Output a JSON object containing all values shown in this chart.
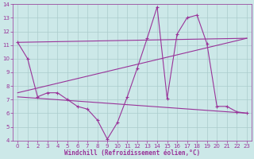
{
  "xlabel": "Windchill (Refroidissement éolien,°C)",
  "bg_color": "#cce8e8",
  "line_color": "#993399",
  "grid_color": "#aacccc",
  "xlim": [
    -0.5,
    23.5
  ],
  "ylim": [
    4,
    14
  ],
  "yticks": [
    4,
    5,
    6,
    7,
    8,
    9,
    10,
    11,
    12,
    13,
    14
  ],
  "xticks": [
    0,
    1,
    2,
    3,
    4,
    5,
    6,
    7,
    8,
    9,
    10,
    11,
    12,
    13,
    14,
    15,
    16,
    17,
    18,
    19,
    20,
    21,
    22,
    23
  ],
  "series1_x": [
    0,
    1,
    2,
    3,
    4,
    5,
    6,
    7,
    8,
    9,
    10,
    11,
    12,
    13,
    14,
    15,
    16,
    17,
    18,
    19,
    20,
    21,
    22,
    23
  ],
  "series1_y": [
    11.2,
    10.0,
    7.2,
    7.5,
    7.5,
    7.0,
    6.5,
    6.3,
    5.5,
    4.1,
    5.3,
    7.2,
    9.3,
    11.5,
    13.8,
    7.1,
    11.8,
    13.0,
    13.2,
    11.1,
    6.5,
    6.5,
    6.1,
    6.0
  ],
  "trend1_x": [
    0,
    23
  ],
  "trend1_y": [
    7.5,
    11.5
  ],
  "trend2_x": [
    0,
    23
  ],
  "trend2_y": [
    11.2,
    11.5
  ],
  "trend3_x": [
    0,
    23
  ],
  "trend3_y": [
    7.2,
    6.0
  ]
}
